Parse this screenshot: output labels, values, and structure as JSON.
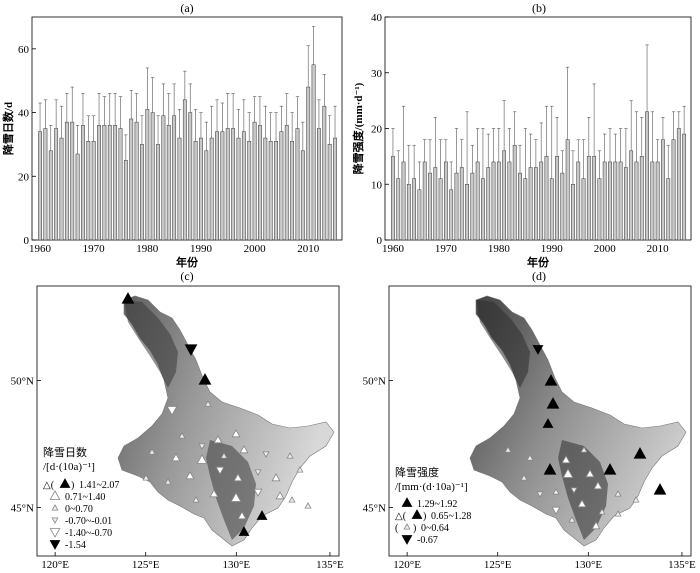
{
  "panel_labels": {
    "a": "(a)",
    "b": "(b)",
    "c": "(c)",
    "d": "(d)"
  },
  "chart_data": [
    {
      "type": "bar",
      "panel": "(a)",
      "xlabel": "年份",
      "ylabel": "降雪日数/d",
      "ylim": [
        0,
        70
      ],
      "yticks": [
        "0",
        "20",
        "40",
        "60"
      ],
      "xticks": [
        "1960",
        "1970",
        "1980",
        "1990",
        "2000",
        "2010"
      ],
      "error_bars": true,
      "x": [
        1960,
        1961,
        1962,
        1963,
        1964,
        1965,
        1966,
        1967,
        1968,
        1969,
        1970,
        1971,
        1972,
        1973,
        1974,
        1975,
        1976,
        1977,
        1978,
        1979,
        1980,
        1981,
        1982,
        1983,
        1984,
        1985,
        1986,
        1987,
        1988,
        1989,
        1990,
        1991,
        1992,
        1993,
        1994,
        1995,
        1996,
        1997,
        1998,
        1999,
        2000,
        2001,
        2002,
        2003,
        2004,
        2005,
        2006,
        2007,
        2008,
        2009,
        2010,
        2011,
        2012,
        2013,
        2014,
        2015
      ],
      "values": [
        34,
        35,
        28,
        35,
        32,
        37,
        37,
        27,
        36,
        31,
        31,
        36,
        36,
        36,
        36,
        35,
        25,
        38,
        37,
        30,
        41,
        40,
        30,
        39,
        36,
        39,
        32,
        44,
        40,
        31,
        32,
        28,
        32,
        34,
        34,
        35,
        35,
        32,
        34,
        31,
        37,
        36,
        32,
        31,
        31,
        34,
        36,
        31,
        35,
        28,
        48,
        55,
        35,
        42,
        30,
        32
      ],
      "errors": [
        9,
        9,
        8,
        9,
        10,
        9,
        11,
        9,
        10,
        8,
        8,
        10,
        9,
        10,
        10,
        10,
        8,
        9,
        9,
        9,
        13,
        11,
        9,
        10,
        10,
        10,
        9,
        9,
        9,
        10,
        8,
        9,
        10,
        10,
        9,
        11,
        11,
        9,
        10,
        9,
        8,
        9,
        10,
        9,
        9,
        8,
        10,
        9,
        10,
        9,
        13,
        12,
        9,
        10,
        9,
        10
      ]
    },
    {
      "type": "bar",
      "panel": "(b)",
      "xlabel": "年份",
      "ylabel": "降雪强度/(mm·d⁻¹)",
      "ylim": [
        0,
        40
      ],
      "yticks": [
        "0",
        "10",
        "20",
        "30",
        "40"
      ],
      "xticks": [
        "1960",
        "1970",
        "1980",
        "1990",
        "2000",
        "2010"
      ],
      "error_bars": true,
      "x": [
        1960,
        1961,
        1962,
        1963,
        1964,
        1965,
        1966,
        1967,
        1968,
        1969,
        1970,
        1971,
        1972,
        1973,
        1974,
        1975,
        1976,
        1977,
        1978,
        1979,
        1980,
        1981,
        1982,
        1983,
        1984,
        1985,
        1986,
        1987,
        1988,
        1989,
        1990,
        1991,
        1992,
        1993,
        1994,
        1995,
        1996,
        1997,
        1998,
        1999,
        2000,
        2001,
        2002,
        2003,
        2004,
        2005,
        2006,
        2007,
        2008,
        2009,
        2010,
        2011,
        2012,
        2013,
        2014,
        2015
      ],
      "values": [
        15,
        11,
        14,
        10,
        11,
        9,
        14,
        12,
        13,
        11,
        14,
        9,
        12,
        13,
        10,
        12,
        14,
        11,
        13,
        14,
        14,
        16,
        14,
        17,
        12,
        11,
        13,
        13,
        14,
        15,
        11,
        15,
        12,
        18,
        10,
        14,
        11,
        15,
        15,
        11,
        14,
        14,
        14,
        14,
        13,
        16,
        14,
        15,
        23,
        14,
        14,
        18,
        11,
        18,
        20,
        19
      ],
      "errors": [
        5,
        5,
        10,
        7,
        6,
        5,
        4,
        6,
        9,
        7,
        4,
        5,
        8,
        5,
        13,
        5,
        6,
        9,
        6,
        6,
        6,
        9,
        6,
        6,
        5,
        9,
        6,
        5,
        7,
        9,
        13,
        7,
        4,
        13,
        6,
        4,
        7,
        7,
        13,
        5,
        5,
        6,
        5,
        6,
        7,
        9,
        9,
        7,
        12,
        9,
        4,
        4,
        6,
        5,
        3,
        5
      ]
    },
    {
      "type": "map",
      "panel": "(c)",
      "xticks": [
        "120°E",
        "125°E",
        "130°E",
        "135°E"
      ],
      "yticks": [
        "50°N",
        "45°N"
      ],
      "legend": {
        "title_line1": "降雪日数",
        "title_line2": "/[d·(10a)⁻¹]",
        "entries": [
          {
            "symbol": "up-filled",
            "prefix": "△(",
            "suffix": ")",
            "label": "1.41~2.07"
          },
          {
            "symbol": "up-hollow",
            "label": "0.71~1.40"
          },
          {
            "symbol": "up-small",
            "label": "0~0.70"
          },
          {
            "symbol": "down-small",
            "label": "-0.70~-0.01"
          },
          {
            "symbol": "down-hollow",
            "label": "-1.40~-0.70"
          },
          {
            "symbol": "down-filled",
            "label": "-1.54"
          }
        ]
      }
    },
    {
      "type": "map",
      "panel": "(d)",
      "xticks": [
        "120°E",
        "125°E",
        "130°E",
        "135°E"
      ],
      "yticks": [
        "50°N",
        "45°N"
      ],
      "legend": {
        "title_line1": "降雪强度",
        "title_line2": "/[mm·(d·10a)⁻¹]",
        "entries": [
          {
            "symbol": "up-filled",
            "label": "1.29~1.92"
          },
          {
            "symbol": "up-filled-paren",
            "prefix": "△(",
            "suffix": ")",
            "label": "0.65~1.28"
          },
          {
            "symbol": "up-small-paren",
            "prefix": "(",
            "suffix": ")",
            "label": "0~0.64"
          },
          {
            "symbol": "down-filled",
            "label": "-0.67"
          }
        ]
      }
    }
  ]
}
